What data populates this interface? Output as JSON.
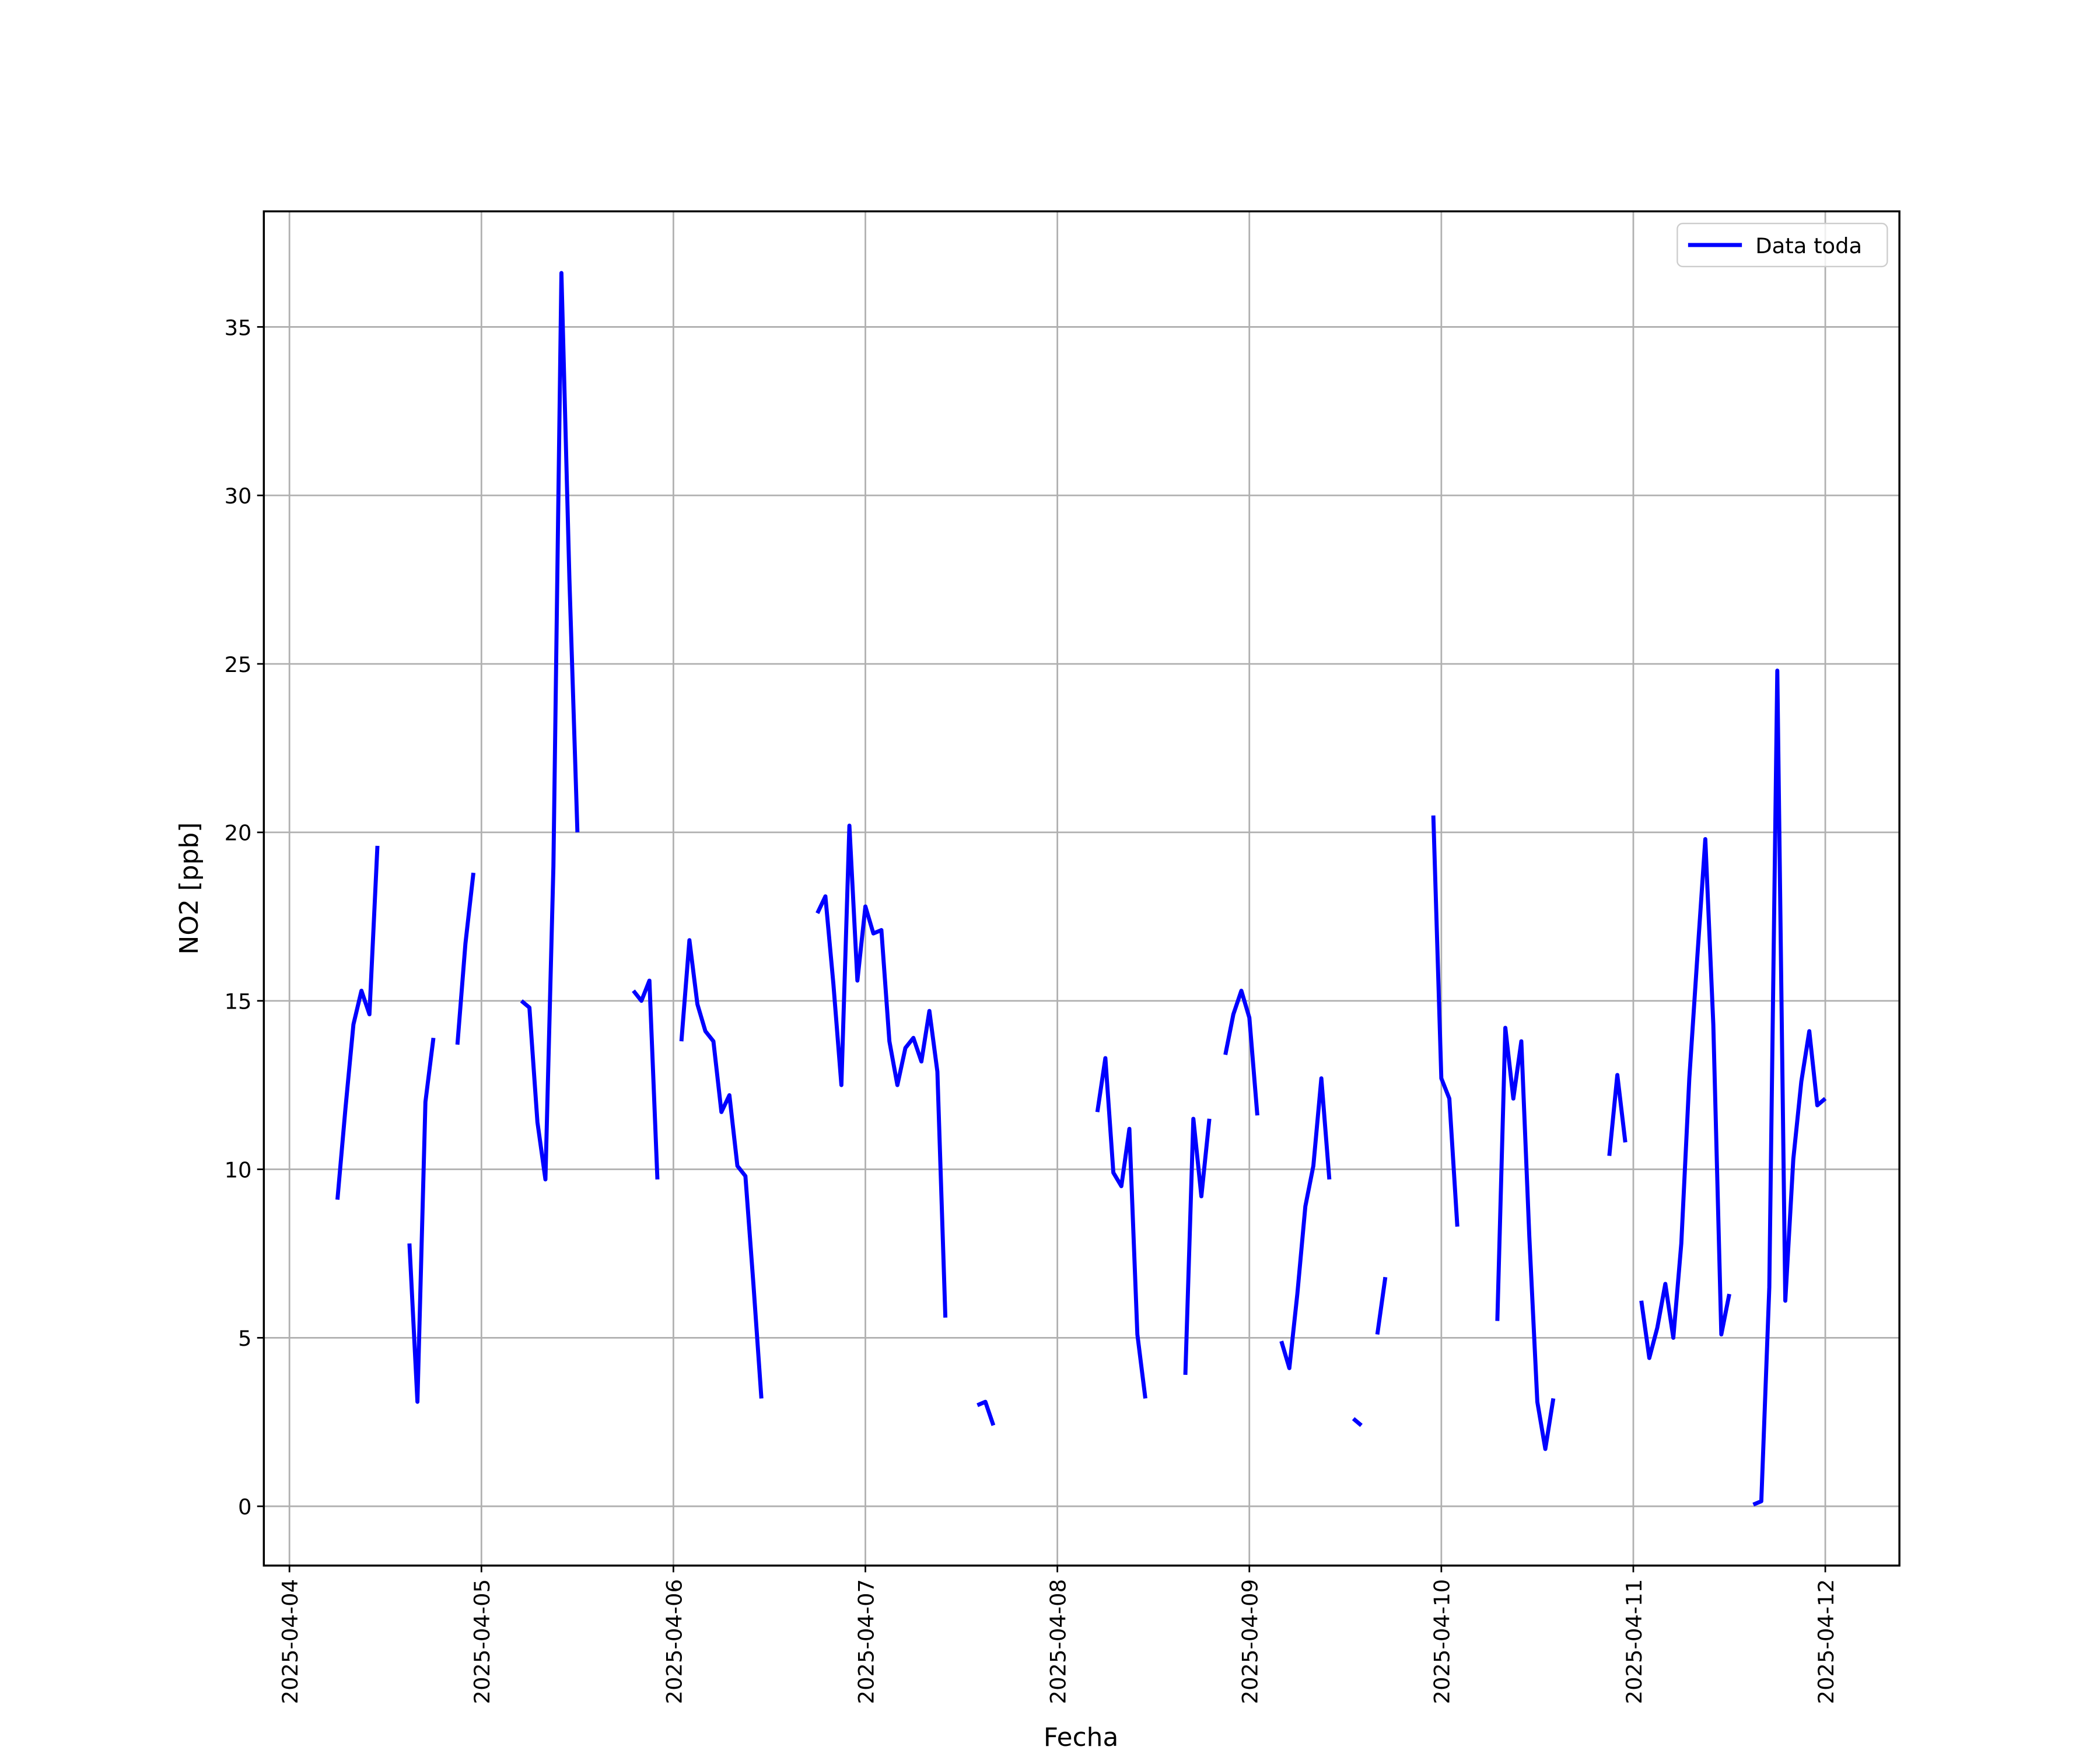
{
  "chart_data": {
    "type": "line",
    "xlabel": "Fecha",
    "ylabel": "NO2 [ppb]",
    "x": [
      "2025-04-04 06:00",
      "2025-04-04 07:00",
      "2025-04-04 08:00",
      "2025-04-04 09:00",
      "2025-04-04 10:00",
      "2025-04-04 11:00",
      "2025-04-04 12:00",
      "2025-04-04 15:00",
      "2025-04-04 16:00",
      "2025-04-04 17:00",
      "2025-04-04 18:00",
      "2025-04-04 19:00",
      "2025-04-04 21:00",
      "2025-04-04 22:00",
      "2025-04-04 23:00",
      "2025-04-05 00:00",
      "2025-04-05 05:00",
      "2025-04-05 06:00",
      "2025-04-05 07:00",
      "2025-04-05 08:00",
      "2025-04-05 09:00",
      "2025-04-05 10:00",
      "2025-04-05 11:00",
      "2025-04-05 12:00",
      "2025-04-05 13:00",
      "2025-04-05 19:00",
      "2025-04-05 20:00",
      "2025-04-05 21:00",
      "2025-04-05 22:00",
      "2025-04-05 23:00",
      "2025-04-06 01:00",
      "2025-04-06 02:00",
      "2025-04-06 03:00",
      "2025-04-06 04:00",
      "2025-04-06 05:00",
      "2025-04-06 06:00",
      "2025-04-06 07:00",
      "2025-04-06 08:00",
      "2025-04-06 09:00",
      "2025-04-06 10:00",
      "2025-04-06 11:00",
      "2025-04-06 12:00",
      "2025-04-06 18:00",
      "2025-04-06 19:00",
      "2025-04-06 20:00",
      "2025-04-06 21:00",
      "2025-04-06 22:00",
      "2025-04-06 23:00",
      "2025-04-07 00:00",
      "2025-04-07 01:00",
      "2025-04-07 02:00",
      "2025-04-07 03:00",
      "2025-04-07 04:00",
      "2025-04-07 05:00",
      "2025-04-07 06:00",
      "2025-04-07 07:00",
      "2025-04-07 08:00",
      "2025-04-07 09:00",
      "2025-04-07 10:00",
      "2025-04-07 11:00",
      "2025-04-07 14:00",
      "2025-04-07 15:00",
      "2025-04-07 16:00",
      "2025-04-07 17:00",
      "2025-04-08 05:00",
      "2025-04-08 06:00",
      "2025-04-08 07:00",
      "2025-04-08 08:00",
      "2025-04-08 09:00",
      "2025-04-08 10:00",
      "2025-04-08 11:00",
      "2025-04-08 12:00",
      "2025-04-08 16:00",
      "2025-04-08 17:00",
      "2025-04-08 18:00",
      "2025-04-08 19:00",
      "2025-04-08 20:00",
      "2025-04-08 21:00",
      "2025-04-08 22:00",
      "2025-04-08 23:00",
      "2025-04-09 00:00",
      "2025-04-09 01:00",
      "2025-04-09 02:00",
      "2025-04-09 04:00",
      "2025-04-09 05:00",
      "2025-04-09 06:00",
      "2025-04-09 07:00",
      "2025-04-09 08:00",
      "2025-04-09 09:00",
      "2025-04-09 10:00",
      "2025-04-09 11:00",
      "2025-04-09 13:00",
      "2025-04-09 14:00",
      "2025-04-09 15:00",
      "2025-04-09 16:00",
      "2025-04-09 17:00",
      "2025-04-09 18:00",
      "2025-04-09 23:00",
      "2025-04-10 00:00",
      "2025-04-10 01:00",
      "2025-04-10 02:00",
      "2025-04-10 03:00",
      "2025-04-10 07:00",
      "2025-04-10 08:00",
      "2025-04-10 09:00",
      "2025-04-10 10:00",
      "2025-04-10 11:00",
      "2025-04-10 12:00",
      "2025-04-10 13:00",
      "2025-04-10 14:00",
      "2025-04-10 15:00",
      "2025-04-10 21:00",
      "2025-04-10 22:00",
      "2025-04-10 23:00",
      "2025-04-11 00:00",
      "2025-04-11 01:00",
      "2025-04-11 02:00",
      "2025-04-11 03:00",
      "2025-04-11 04:00",
      "2025-04-11 05:00",
      "2025-04-11 06:00",
      "2025-04-11 07:00",
      "2025-04-11 08:00",
      "2025-04-11 09:00",
      "2025-04-11 10:00",
      "2025-04-11 11:00",
      "2025-04-11 12:00",
      "2025-04-11 13:00",
      "2025-04-11 15:00",
      "2025-04-11 16:00",
      "2025-04-11 17:00",
      "2025-04-11 18:00",
      "2025-04-11 19:00",
      "2025-04-11 20:00",
      "2025-04-11 21:00",
      "2025-04-11 22:00",
      "2025-04-11 23:00",
      "2025-04-12 00:00"
    ],
    "series": [
      {
        "name": "Data toda",
        "color": "#0000ff",
        "values": [
          9.1,
          11.8,
          14.3,
          15.3,
          14.6,
          19.6,
          null,
          7.8,
          3.1,
          12.0,
          13.9,
          null,
          13.7,
          16.7,
          18.8,
          null,
          15.0,
          14.8,
          11.4,
          9.7,
          19.0,
          36.6,
          27.5,
          20.0,
          null,
          15.3,
          15.0,
          15.6,
          9.7,
          null,
          13.8,
          16.8,
          14.9,
          14.1,
          13.8,
          11.7,
          12.2,
          10.1,
          9.8,
          6.6,
          3.2,
          null,
          17.6,
          18.1,
          15.5,
          12.5,
          20.2,
          15.6,
          17.8,
          17.0,
          17.1,
          13.8,
          12.5,
          13.6,
          13.9,
          13.2,
          14.7,
          12.9,
          5.6,
          null,
          3.0,
          3.1,
          2.4,
          null,
          11.7,
          13.3,
          9.9,
          9.5,
          11.2,
          5.1,
          3.2,
          null,
          3.9,
          11.5,
          9.2,
          11.5,
          null,
          13.4,
          14.6,
          15.3,
          14.5,
          11.6,
          null,
          4.9,
          4.1,
          6.3,
          8.9,
          10.1,
          12.7,
          9.7,
          null,
          2.6,
          2.4,
          null,
          5.1,
          6.8,
          null,
          20.5,
          12.7,
          12.1,
          8.3,
          null,
          5.5,
          14.2,
          12.1,
          13.8,
          8.0,
          3.1,
          1.7,
          3.2,
          null,
          10.4,
          12.8,
          10.8,
          null,
          6.1,
          4.4,
          5.3,
          6.6,
          5.0,
          7.8,
          12.7,
          16.3,
          19.8,
          14.3,
          5.1,
          6.3,
          null,
          0.05,
          0.15,
          6.5,
          24.8,
          6.1,
          10.3,
          12.6,
          14.1,
          11.9,
          12.1
        ]
      }
    ],
    "xlim": [
      "2025-04-03 20:48",
      "2025-04-12 09:16"
    ],
    "xticks": [
      "2025-04-04",
      "2025-04-05",
      "2025-04-06",
      "2025-04-07",
      "2025-04-08",
      "2025-04-09",
      "2025-04-10",
      "2025-04-11",
      "2025-04-12"
    ],
    "ylim": [
      -1.76,
      38.43
    ],
    "yticks": [
      0,
      5,
      10,
      15,
      20,
      25,
      30,
      35
    ],
    "grid": true,
    "legend": "upper right"
  }
}
